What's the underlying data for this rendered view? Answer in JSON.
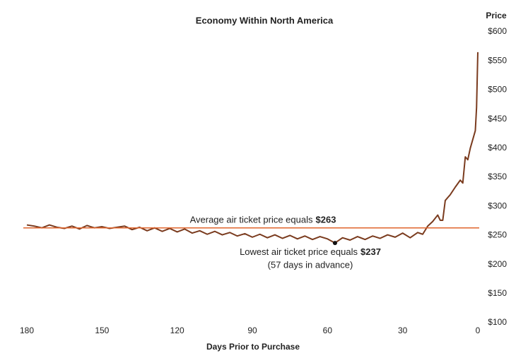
{
  "chart_data": {
    "type": "line",
    "title": "Economy Within North America",
    "x_label": "Days Prior to Purchase",
    "y_label": "Price",
    "xlim": [
      180,
      0
    ],
    "xticks": [
      180,
      150,
      120,
      90,
      60,
      30,
      0
    ],
    "ylim": [
      100,
      600
    ],
    "yticks": [
      {
        "value": 100,
        "label": "$100"
      },
      {
        "value": 150,
        "label": "$150"
      },
      {
        "value": 200,
        "label": "$200"
      },
      {
        "value": 250,
        "label": "$250"
      },
      {
        "value": 300,
        "label": "$300"
      },
      {
        "value": 350,
        "label": "$350"
      },
      {
        "value": 400,
        "label": "$400"
      },
      {
        "value": 450,
        "label": "$450"
      },
      {
        "value": 500,
        "label": "$500"
      },
      {
        "value": 550,
        "label": "$550"
      },
      {
        "value": 600,
        "label": "$600"
      }
    ],
    "x": [
      180,
      177,
      174,
      171,
      168,
      165,
      162,
      159,
      156,
      153,
      150,
      147,
      144,
      141,
      138,
      135,
      132,
      129,
      126,
      123,
      120,
      117,
      114,
      111,
      108,
      105,
      102,
      99,
      96,
      93,
      90,
      87,
      84,
      81,
      78,
      75,
      72,
      69,
      66,
      63,
      60,
      57,
      54,
      51,
      48,
      45,
      42,
      39,
      36,
      33,
      30,
      27,
      24,
      22,
      20,
      18,
      16,
      15,
      14,
      13,
      11,
      9,
      7,
      6,
      5,
      4,
      3,
      2,
      1,
      0.5,
      0
    ],
    "series": [
      {
        "name": "Price",
        "color": "#7a3b1e",
        "values": [
          268,
          266,
          263,
          268,
          264,
          262,
          266,
          261,
          267,
          263,
          265,
          262,
          264,
          266,
          260,
          264,
          258,
          263,
          257,
          262,
          256,
          261,
          254,
          258,
          252,
          257,
          251,
          255,
          249,
          253,
          247,
          252,
          246,
          251,
          245,
          250,
          244,
          249,
          243,
          248,
          244,
          237,
          246,
          242,
          248,
          243,
          249,
          245,
          251,
          247,
          254,
          246,
          255,
          252,
          266,
          274,
          285,
          276,
          276,
          310,
          320,
          333,
          345,
          340,
          385,
          380,
          400,
          415,
          430,
          470,
          565
        ]
      }
    ],
    "average": {
      "value": 263,
      "color": "#e0642c",
      "label_text": "Average air ticket price equals",
      "label_value": "$263"
    },
    "lowest": {
      "x": 57,
      "value": 237,
      "label_text": "Lowest air ticket price equals",
      "label_value": "$237",
      "note": "(57 days in advance)"
    }
  }
}
